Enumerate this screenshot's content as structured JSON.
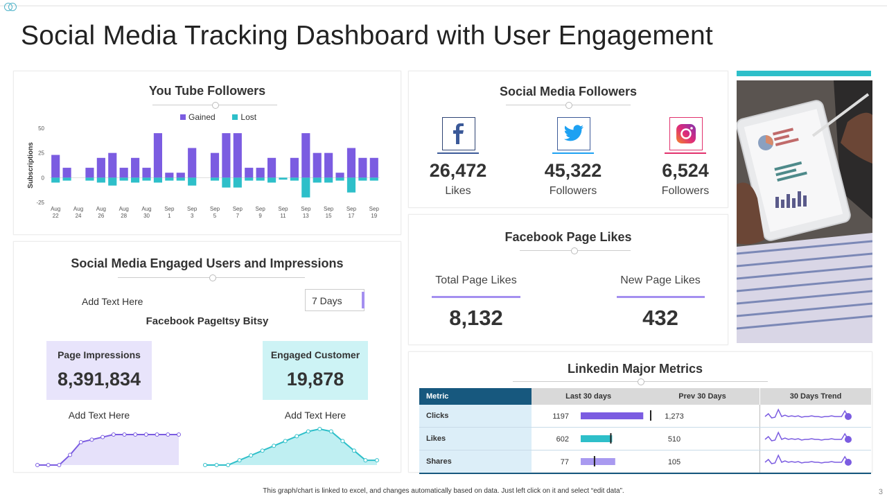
{
  "title": "Social Media Tracking Dashboard with User Engagement",
  "colors": {
    "purple": "#7b5ce1",
    "teal": "#2ebfc9",
    "lightpurple": "#e8e4fb",
    "lightteal": "#cdf3f5",
    "navy": "#17587e",
    "fb": "#3b5998",
    "tw": "#1da1f2",
    "ig": "#c13584"
  },
  "youtube": {
    "title": "You Tube Followers",
    "legend": {
      "gained": "Gained",
      "lost": "Lost"
    }
  },
  "chart_data": {
    "type": "bar",
    "title": "You Tube Followers",
    "ylabel": "Subscriptions",
    "xlabel": "",
    "ylim": [
      -25,
      50
    ],
    "yticks": [
      "50",
      "25",
      "0",
      "-25"
    ],
    "categories": [
      "Aug 22",
      "Aug 23",
      "Aug 24",
      "Aug 25",
      "Aug 26",
      "Aug 27",
      "Aug 28",
      "Aug 29",
      "Aug 30",
      "Aug 31",
      "Sep 1",
      "Sep 2",
      "Sep 3",
      "Sep 4",
      "Sep 5",
      "Sep 6",
      "Sep 7",
      "Sep 8",
      "Sep 9",
      "Sep 10",
      "Sep 11",
      "Sep 12",
      "Sep 13",
      "Sep 14",
      "Sep 15",
      "Sep 16",
      "Sep 17",
      "Sep 18",
      "Sep 19"
    ],
    "tick_labels": [
      [
        "Aug",
        "22"
      ],
      [
        "Aug",
        "24"
      ],
      [
        "Aug",
        "26"
      ],
      [
        "Aug",
        "28"
      ],
      [
        "Aug",
        "30"
      ],
      [
        "Sep",
        "1"
      ],
      [
        "Sep",
        "3"
      ],
      [
        "Sep",
        "5"
      ],
      [
        "Sep",
        "7"
      ],
      [
        "Sep",
        "9"
      ],
      [
        "Sep",
        "11"
      ],
      [
        "Sep",
        "13"
      ],
      [
        "Sep",
        "15"
      ],
      [
        "Sep",
        "17"
      ],
      [
        "Sep",
        "19"
      ]
    ],
    "series": [
      {
        "name": "Gained",
        "values": [
          23,
          10,
          0,
          10,
          20,
          25,
          10,
          20,
          10,
          45,
          5,
          5,
          30,
          0,
          25,
          45,
          45,
          10,
          10,
          20,
          0,
          20,
          45,
          25,
          25,
          5,
          30,
          20,
          20
        ]
      },
      {
        "name": "Lost",
        "values": [
          -5,
          -3,
          0,
          -3,
          -5,
          -8,
          -3,
          -5,
          -3,
          -5,
          -3,
          -3,
          -8,
          0,
          -3,
          -10,
          -10,
          -3,
          -3,
          -5,
          -2,
          -3,
          -20,
          -5,
          -5,
          -3,
          -15,
          -3,
          -3
        ]
      }
    ]
  },
  "engaged": {
    "title": "Social Media Engaged Users and Impressions",
    "add_text": "Add Text Here",
    "select_value": "7 Days",
    "subtitle": "Facebook PageItsy  Bitsy",
    "impressions_label": "Page Impressions",
    "impressions_value": "8,391,834",
    "engaged_label": "Engaged Customer",
    "engaged_value": "19,878",
    "add_text_left": "Add Text Here",
    "add_text_right": "Add Text Here",
    "spark_left": [
      0,
      0,
      0,
      4,
      9,
      10,
      11,
      12,
      12,
      12,
      12,
      12,
      12,
      12
    ],
    "spark_right": [
      0,
      0,
      0,
      1,
      2,
      3,
      4,
      5,
      6,
      7,
      7.5,
      7,
      5,
      3,
      1,
      1
    ]
  },
  "followers": {
    "title": "Social Media Followers",
    "items": [
      {
        "icon": "facebook-icon",
        "value": "26,472",
        "label": "Likes"
      },
      {
        "icon": "twitter-icon",
        "value": "45,322",
        "label": "Followers"
      },
      {
        "icon": "instagram-icon",
        "value": "6,524",
        "label": "Followers"
      }
    ]
  },
  "fb_likes": {
    "title": "Facebook Page Likes",
    "total_label": "Total Page Likes",
    "total_value": "8,132",
    "new_label": "New Page Likes",
    "new_value": "432"
  },
  "linkedin": {
    "title": "Linkedin Major Metrics",
    "headers": [
      "Metric",
      "Last 30 days",
      "Prev 30 Days",
      "30 Days Trend"
    ],
    "rows": [
      {
        "metric": "Clicks",
        "last": "1197",
        "prev": "1,273",
        "last_num": 1197,
        "prev_num": 1273,
        "color": "#7b5ce1"
      },
      {
        "metric": "Likes",
        "last": "602",
        "prev": "510",
        "last_num": 602,
        "prev_num": 510,
        "color": "#2ebfc9"
      },
      {
        "metric": "Shares",
        "last": "77",
        "prev": "105",
        "last_num": 77,
        "prev_num": 105,
        "color": "#a99af0"
      }
    ]
  },
  "footer": "This graph/chart is linked to excel, and changes automatically based on data. Just left click on it and select “edit data”.",
  "page_number": "3"
}
